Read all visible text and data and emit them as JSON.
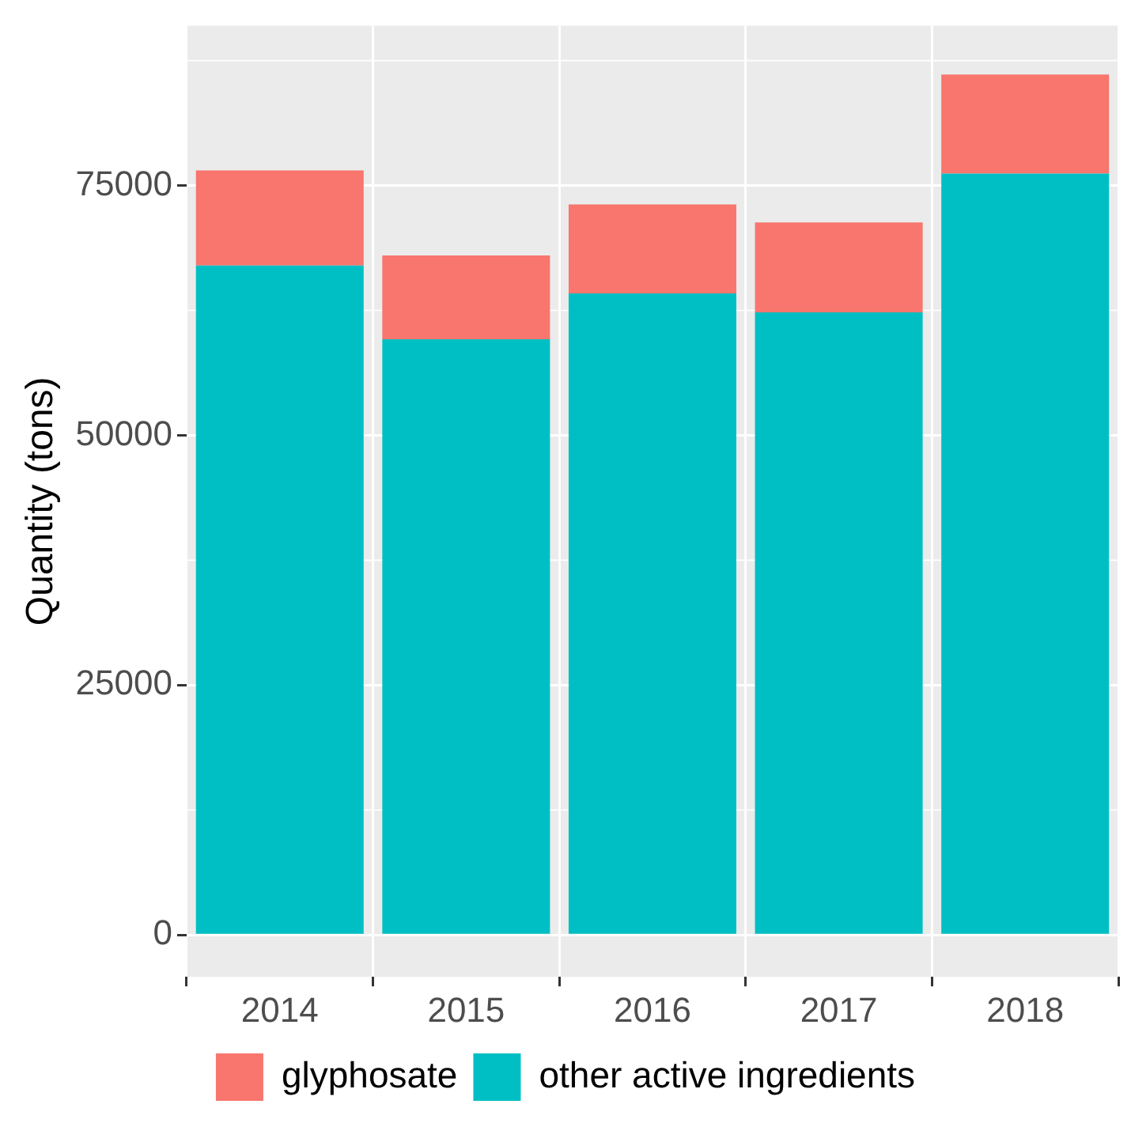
{
  "chart_data": {
    "type": "bar",
    "stacked": true,
    "ylabel": "Quantity (tons)",
    "categories": [
      "2014",
      "2015",
      "2016",
      "2017",
      "2018"
    ],
    "series": [
      {
        "name": "other active ingredients",
        "color": "#00bfc4",
        "values": [
          67000,
          59600,
          64200,
          62300,
          76200
        ]
      },
      {
        "name": "glyphosate",
        "color": "#f8766d",
        "values": [
          9500,
          8400,
          8900,
          9000,
          9900
        ]
      }
    ],
    "ylim": [
      -4200,
      91000
    ],
    "yticks": [
      0,
      25000,
      50000,
      75000
    ],
    "grid": true,
    "legend": "bottom"
  }
}
